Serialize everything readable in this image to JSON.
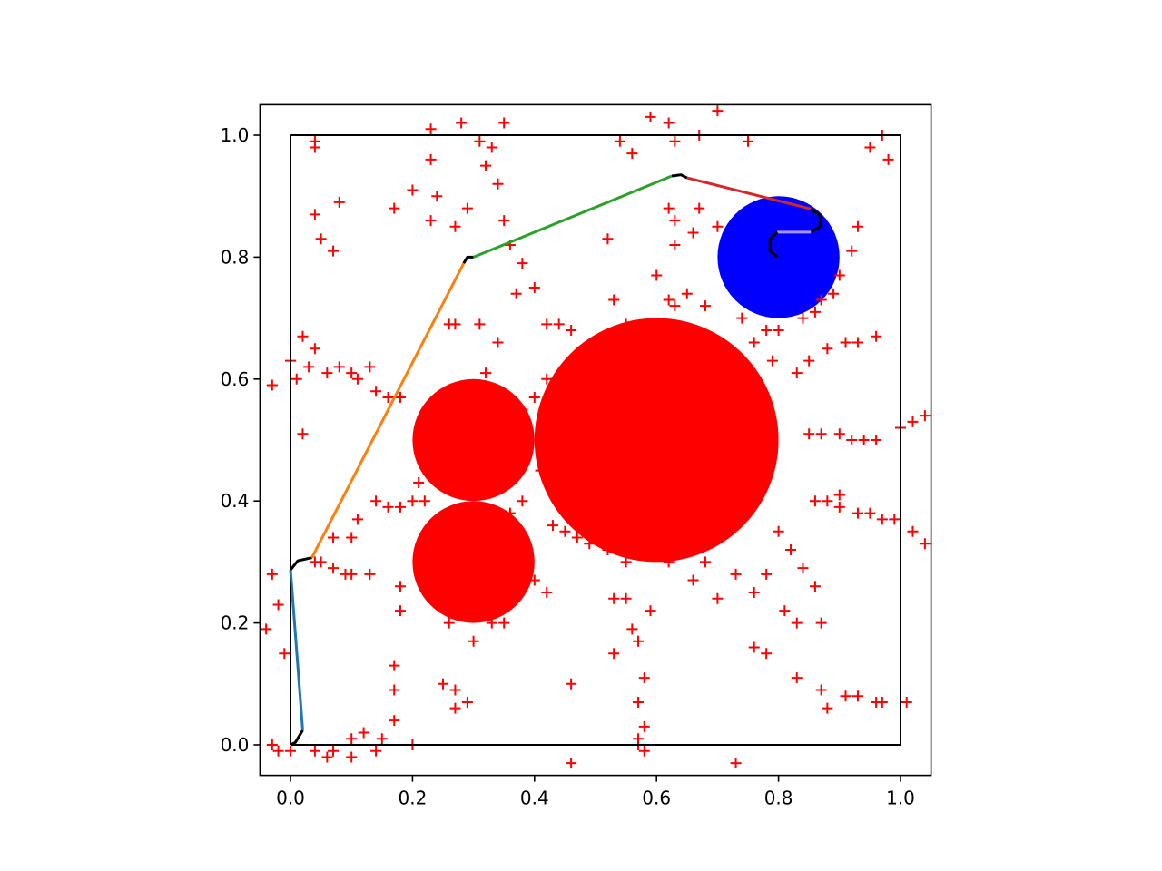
{
  "chart_data": {
    "type": "scatter",
    "marker": "+",
    "color": "#ff0000",
    "xlim": [
      -0.05,
      1.05
    ],
    "ylim": [
      -0.05,
      1.05
    ],
    "xticks": [
      {
        "value": 0,
        "label": "0.0"
      },
      {
        "value": 0.2,
        "label": "0.2"
      },
      {
        "value": 0.4,
        "label": "0.4"
      },
      {
        "value": 0.6,
        "label": "0.6"
      },
      {
        "value": 0.8,
        "label": "0.8"
      },
      {
        "value": 1,
        "label": "1.0"
      }
    ],
    "yticks": [
      {
        "value": 0,
        "label": "0.0"
      },
      {
        "value": 0.2,
        "label": "0.2"
      },
      {
        "value": 0.4,
        "label": "0.4"
      },
      {
        "value": 0.6,
        "label": "0.6"
      },
      {
        "value": 0.8,
        "label": "0.8"
      },
      {
        "value": 1,
        "label": "1.0"
      }
    ],
    "circles": [
      {
        "x": 0.3,
        "y": 0.5,
        "r": 0.1,
        "color": "#ff0000"
      },
      {
        "x": 0.3,
        "y": 0.3,
        "r": 0.1,
        "color": "#ff0000"
      },
      {
        "x": 0.6,
        "y": 0.5,
        "r": 0.2,
        "color": "#ff0000"
      },
      {
        "x": 0.8,
        "y": 0.8,
        "r": 0.1,
        "color": "#0000ff"
      }
    ],
    "lines": [
      {
        "color": "#000000",
        "x": [
          0,
          1,
          1,
          0,
          0
        ],
        "values": [
          0,
          0,
          1,
          1,
          0
        ]
      },
      {
        "color": "#000000",
        "x": [
          0.0,
          0.008,
          0.02
        ],
        "values": [
          0.0,
          0.004,
          0.024
        ]
      },
      {
        "color": "#1f77b4",
        "x": [
          0.02,
          0.0
        ],
        "values": [
          0.024,
          0.287
        ]
      },
      {
        "color": "#000000",
        "x": [
          0.0,
          0.012,
          0.035
        ],
        "values": [
          0.287,
          0.302,
          0.307
        ]
      },
      {
        "color": "#ff7f0e",
        "x": [
          0.035,
          0.284
        ],
        "values": [
          0.307,
          0.79
        ]
      },
      {
        "color": "#000000",
        "x": [
          0.284,
          0.29,
          0.3
        ],
        "values": [
          0.79,
          0.8,
          0.8
        ]
      },
      {
        "color": "#2ca02c",
        "x": [
          0.3,
          0.625
        ],
        "values": [
          0.8,
          0.933
        ]
      },
      {
        "color": "#000000",
        "x": [
          0.625,
          0.64,
          0.65
        ],
        "values": [
          0.933,
          0.935,
          0.93
        ]
      },
      {
        "color": "#d62728",
        "x": [
          0.65,
          0.853
        ],
        "values": [
          0.93,
          0.879
        ]
      },
      {
        "color": "#000000",
        "x": [
          0.853,
          0.868,
          0.868,
          0.853
        ],
        "values": [
          0.879,
          0.868,
          0.85,
          0.841
        ]
      },
      {
        "color": "#a993ee",
        "x": [
          0.853,
          0.798
        ],
        "values": [
          0.841,
          0.841
        ]
      },
      {
        "color": "#000000",
        "x": [
          0.798,
          0.786,
          0.786,
          0.798
        ],
        "values": [
          0.841,
          0.83,
          0.81,
          0.8
        ]
      }
    ],
    "x": [
      0.23,
      0.28,
      0.35,
      0.59,
      0.62,
      0.7,
      0.54,
      0.56,
      0.63,
      0.67,
      0.75,
      0.97,
      0.95,
      0.98,
      0.04,
      0.04,
      0.31,
      0.33,
      0.23,
      0.32,
      0.34,
      0.2,
      0.24,
      0.29,
      0.17,
      0.04,
      0.08,
      0.05,
      0.07,
      0.23,
      0.27,
      0.35,
      0.36,
      0.38,
      0.37,
      0.4,
      0.42,
      0.44,
      0.46,
      0.53,
      0.55,
      0.6,
      0.62,
      0.63,
      0.65,
      0.68,
      0.63,
      0.63,
      0.62,
      0.67,
      0.66,
      0.7,
      0.52,
      0.74,
      0.78,
      0.8,
      0.84,
      0.86,
      0.87,
      0.89,
      0.9,
      0.92,
      0.93,
      0.76,
      0.79,
      0.85,
      0.88,
      0.91,
      0.93,
      0.96,
      0.83,
      0.85,
      0.87,
      0.9,
      0.92,
      0.94,
      0.96,
      1.0,
      1.02,
      1.04,
      0.86,
      0.88,
      0.9,
      0.93,
      0.95,
      0.97,
      0.99,
      1.02,
      1.04,
      0.9,
      0.8,
      0.82,
      0.84,
      0.86,
      0.78,
      0.73,
      0.76,
      0.81,
      0.83,
      0.87,
      0.76,
      0.78,
      0.83,
      0.87,
      0.88,
      0.91,
      0.93,
      0.96,
      0.97,
      1.01,
      0.68,
      0.66,
      0.7,
      0.73,
      0.57,
      0.57,
      0.58,
      0.57,
      0.58,
      0.58,
      0.57,
      0.56,
      0.55,
      0.55,
      0.52,
      0.49,
      0.47,
      0.45,
      0.43,
      0.46,
      0.46,
      0.53,
      0.53,
      0.59,
      0.62,
      0.38,
      0.4,
      0.42,
      0.41,
      0.38,
      0.36,
      0.37,
      0.39,
      0.4,
      0.42,
      0.35,
      0.33,
      0.3,
      0.26,
      0.24,
      0.22,
      0.2,
      0.18,
      0.16,
      0.14,
      0.21,
      0.18,
      0.16,
      0.14,
      0.11,
      0.1,
      0.06,
      0.03,
      0.01,
      -0.03,
      0.0,
      0.02,
      0.04,
      0.08,
      0.13,
      0.26,
      0.27,
      0.31,
      0.34,
      0.32,
      0.02,
      0.05,
      0.07,
      0.09,
      0.1,
      0.07,
      0.1,
      0.11,
      0.13,
      0.18,
      0.18,
      -0.03,
      -0.02,
      -0.01,
      -0.04,
      0.17,
      0.17,
      0.17,
      0.15,
      0.14,
      0.12,
      0.1,
      0.07,
      0.04,
      0.06,
      0.1,
      0.2,
      0.25,
      0.27,
      0.29,
      0.27,
      -0.03,
      -0.02,
      0.0,
      0.04
    ],
    "values": [
      1.01,
      1.02,
      1.02,
      1.03,
      1.02,
      1.04,
      0.99,
      0.97,
      0.99,
      1.0,
      0.99,
      1.0,
      0.98,
      0.96,
      0.99,
      0.98,
      0.99,
      0.98,
      0.96,
      0.95,
      0.92,
      0.91,
      0.9,
      0.88,
      0.88,
      0.87,
      0.89,
      0.83,
      0.81,
      0.86,
      0.85,
      0.86,
      0.82,
      0.79,
      0.74,
      0.75,
      0.69,
      0.69,
      0.68,
      0.73,
      0.69,
      0.77,
      0.73,
      0.72,
      0.74,
      0.72,
      0.82,
      0.86,
      0.88,
      0.88,
      0.84,
      0.85,
      0.83,
      0.7,
      0.68,
      0.68,
      0.7,
      0.71,
      0.73,
      0.74,
      0.77,
      0.81,
      0.85,
      0.66,
      0.63,
      0.63,
      0.65,
      0.66,
      0.66,
      0.67,
      0.61,
      0.51,
      0.51,
      0.51,
      0.5,
      0.5,
      0.5,
      0.52,
      0.53,
      0.54,
      0.4,
      0.4,
      0.39,
      0.38,
      0.38,
      0.37,
      0.37,
      0.35,
      0.33,
      0.41,
      0.35,
      0.32,
      0.29,
      0.26,
      0.28,
      0.28,
      0.25,
      0.22,
      0.2,
      0.2,
      0.16,
      0.15,
      0.11,
      0.09,
      0.06,
      0.08,
      0.08,
      0.07,
      0.07,
      0.07,
      0.3,
      0.27,
      0.24,
      -0.03,
      0.01,
      0.0,
      -0.01,
      0.07,
      0.03,
      0.11,
      0.17,
      0.19,
      0.24,
      0.3,
      0.32,
      0.33,
      0.34,
      0.35,
      0.36,
      0.1,
      -0.03,
      0.24,
      0.15,
      0.22,
      0.3,
      0.55,
      0.57,
      0.6,
      0.45,
      0.4,
      0.38,
      0.33,
      0.31,
      0.27,
      0.25,
      0.2,
      0.2,
      0.17,
      0.2,
      0.23,
      0.4,
      0.4,
      0.39,
      0.39,
      0.4,
      0.43,
      0.57,
      0.57,
      0.58,
      0.6,
      0.61,
      0.61,
      0.62,
      0.6,
      0.59,
      0.63,
      0.67,
      0.65,
      0.62,
      0.62,
      0.69,
      0.69,
      0.69,
      0.66,
      0.61,
      0.51,
      0.3,
      0.29,
      0.28,
      0.28,
      0.34,
      0.34,
      0.37,
      0.28,
      0.26,
      0.22,
      0.28,
      0.23,
      0.15,
      0.19,
      0.13,
      0.09,
      0.04,
      0.01,
      -0.01,
      0.02,
      0.01,
      -0.01,
      -0.01,
      -0.02,
      -0.02,
      0.0,
      0.1,
      0.09,
      0.07,
      0.06,
      0.0,
      -0.01,
      -0.01,
      0.3
    ]
  }
}
